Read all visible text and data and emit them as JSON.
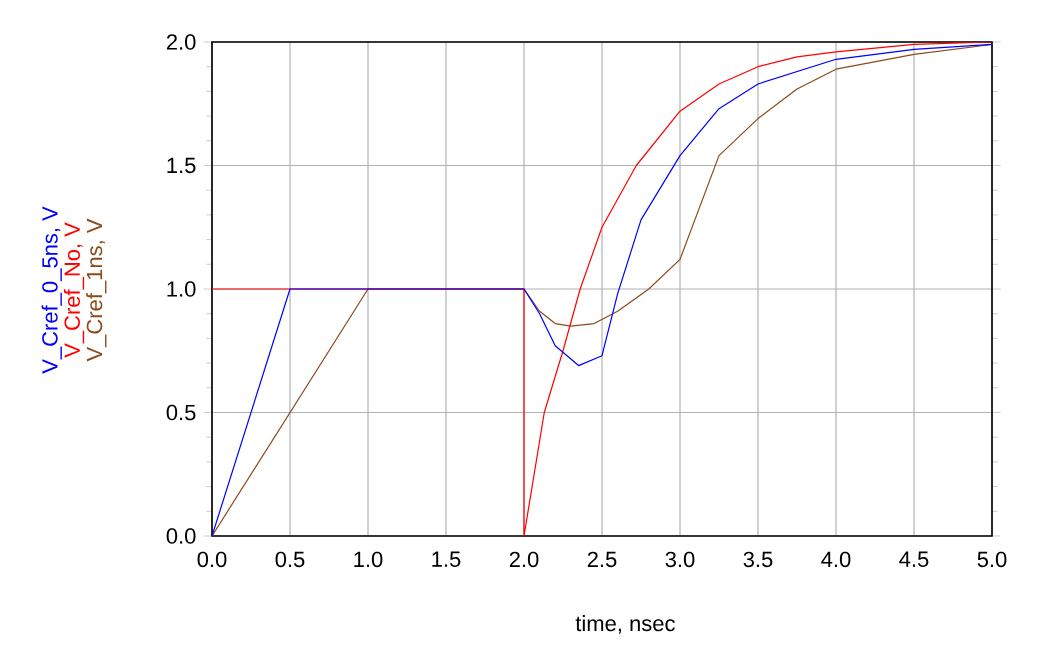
{
  "chart_data": {
    "type": "line",
    "xlabel": "time, nsec",
    "xlim": [
      0,
      5
    ],
    "ylim": [
      0,
      2
    ],
    "xticks": [
      {
        "value": 0,
        "label": "0.0"
      },
      {
        "value": 0.5,
        "label": "0.5"
      },
      {
        "value": 1,
        "label": "1.0"
      },
      {
        "value": 1.5,
        "label": "1.5"
      },
      {
        "value": 2,
        "label": "2.0"
      },
      {
        "value": 2.5,
        "label": "2.5"
      },
      {
        "value": 3,
        "label": "3.0"
      },
      {
        "value": 3.5,
        "label": "3.5"
      },
      {
        "value": 4,
        "label": "4.0"
      },
      {
        "value": 4.5,
        "label": "4.5"
      },
      {
        "value": 5,
        "label": "5.0"
      }
    ],
    "yticks": [
      {
        "value": 0,
        "label": "0.0"
      },
      {
        "value": 0.5,
        "label": "0.5"
      },
      {
        "value": 1,
        "label": "1.0"
      },
      {
        "value": 1.5,
        "label": "1.5"
      },
      {
        "value": 2,
        "label": "2.0"
      }
    ],
    "grid": true,
    "legend": "left",
    "marker": "none",
    "line_style": "solid",
    "series": [
      {
        "name": "V_Cref_0_5ns, V",
        "color": "#0000ff",
        "x": [
          0,
          0.5,
          2,
          2.1,
          2.2,
          2.35,
          2.5,
          2.6,
          2.75,
          3.0,
          3.25,
          3.5,
          4.0,
          4.5,
          5.0
        ],
        "values": [
          0,
          1,
          1,
          0.9,
          0.77,
          0.69,
          0.73,
          0.98,
          1.28,
          1.54,
          1.73,
          1.83,
          1.93,
          1.97,
          1.99
        ]
      },
      {
        "name": "V_Cref_No, V",
        "color": "#ff0000",
        "x": [
          0,
          2,
          2,
          2.13,
          2.25,
          2.36,
          2.5,
          2.72,
          3.0,
          3.25,
          3.5,
          3.75,
          4.0,
          4.5,
          5.0
        ],
        "values": [
          1,
          1,
          0,
          0.5,
          0.75,
          1.0,
          1.25,
          1.5,
          1.72,
          1.83,
          1.9,
          1.94,
          1.96,
          1.99,
          2.0
        ]
      },
      {
        "name": "V_Cref_1ns, V",
        "color": "#8b4a1c",
        "x": [
          0,
          0.5,
          1,
          2,
          2.1,
          2.2,
          2.3,
          2.45,
          2.6,
          2.8,
          3.0,
          3.25,
          3.5,
          3.75,
          4.0,
          4.5,
          5.0
        ],
        "values": [
          0,
          0.5,
          1,
          1,
          0.91,
          0.86,
          0.85,
          0.86,
          0.91,
          1.0,
          1.12,
          1.54,
          1.69,
          1.81,
          1.89,
          1.95,
          1.99
        ]
      }
    ]
  }
}
